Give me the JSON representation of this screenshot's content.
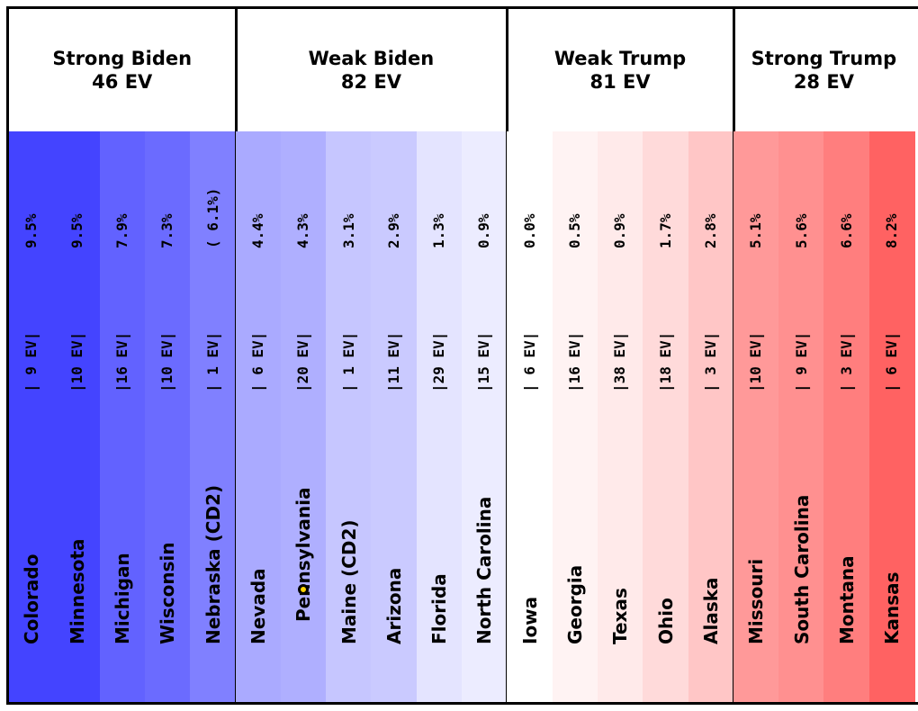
{
  "chart_data": {
    "type": "table",
    "groups": [
      {
        "label": "Strong Biden",
        "ev_total": "46 EV",
        "states": [
          {
            "name": "Colorado",
            "ev": "|  9 EV|",
            "margin": "9.5%",
            "color": "#4444ff",
            "highlight": false
          },
          {
            "name": "Minnesota",
            "ev": "|10 EV|",
            "margin": "9.5%",
            "color": "#4444ff",
            "highlight": false
          },
          {
            "name": "Michigan",
            "ev": "|16 EV|",
            "margin": "7.9%",
            "color": "#6262ff",
            "highlight": false
          },
          {
            "name": "Wisconsin",
            "ev": "|10 EV|",
            "margin": "7.3%",
            "color": "#6b6bff",
            "highlight": false
          },
          {
            "name": "Nebraska (CD2)",
            "ev": "|  1 EV|",
            "margin": "( 6.1%)",
            "color": "#8080ff",
            "highlight": false
          }
        ]
      },
      {
        "label": "Weak Biden",
        "ev_total": "82 EV",
        "states": [
          {
            "name": "Nevada",
            "ev": "|  6 EV|",
            "margin": "4.4%",
            "color": "#aaaaff",
            "highlight": false
          },
          {
            "name": "Pennsylvania",
            "ev": "|20 EV|",
            "margin": "4.3%",
            "color": "#afafff",
            "highlight": true
          },
          {
            "name": "Maine (CD2)",
            "ev": "|  1 EV|",
            "margin": "3.1%",
            "color": "#c6c6ff",
            "highlight": false
          },
          {
            "name": "Arizona",
            "ev": "|11 EV|",
            "margin": "2.9%",
            "color": "#cacaff",
            "highlight": false
          },
          {
            "name": "Florida",
            "ev": "|29 EV|",
            "margin": "1.3%",
            "color": "#e4e4ff",
            "highlight": false
          },
          {
            "name": "North Carolina",
            "ev": "|15 EV|",
            "margin": "0.9%",
            "color": "#ececff",
            "highlight": false
          }
        ]
      },
      {
        "label": "Weak Trump",
        "ev_total": "81 EV",
        "states": [
          {
            "name": "Iowa",
            "ev": "|  6 EV|",
            "margin": "0.0%",
            "color": "#ffffff",
            "highlight": false
          },
          {
            "name": "Georgia",
            "ev": "|16 EV|",
            "margin": "0.5%",
            "color": "#fff3f3",
            "highlight": false
          },
          {
            "name": "Texas",
            "ev": "|38 EV|",
            "margin": "0.9%",
            "color": "#ffeaea",
            "highlight": false
          },
          {
            "name": "Ohio",
            "ev": "|18 EV|",
            "margin": "1.7%",
            "color": "#ffdada",
            "highlight": false
          },
          {
            "name": "Alaska",
            "ev": "|  3 EV|",
            "margin": "2.8%",
            "color": "#ffc6c6",
            "highlight": false
          }
        ]
      },
      {
        "label": "Strong Trump",
        "ev_total": "28 EV",
        "states": [
          {
            "name": "Missouri",
            "ev": "|10 EV|",
            "margin": "5.1%",
            "color": "#ff9999",
            "highlight": false
          },
          {
            "name": "South Carolina",
            "ev": "|  9 EV|",
            "margin": "5.6%",
            "color": "#ff9090",
            "highlight": false
          },
          {
            "name": "Montana",
            "ev": "|  3 EV|",
            "margin": "6.6%",
            "color": "#ff7e7e",
            "highlight": false
          },
          {
            "name": "Kansas",
            "ev": "|  6 EV|",
            "margin": "8.2%",
            "color": "#ff6262",
            "highlight": false
          }
        ]
      }
    ]
  }
}
